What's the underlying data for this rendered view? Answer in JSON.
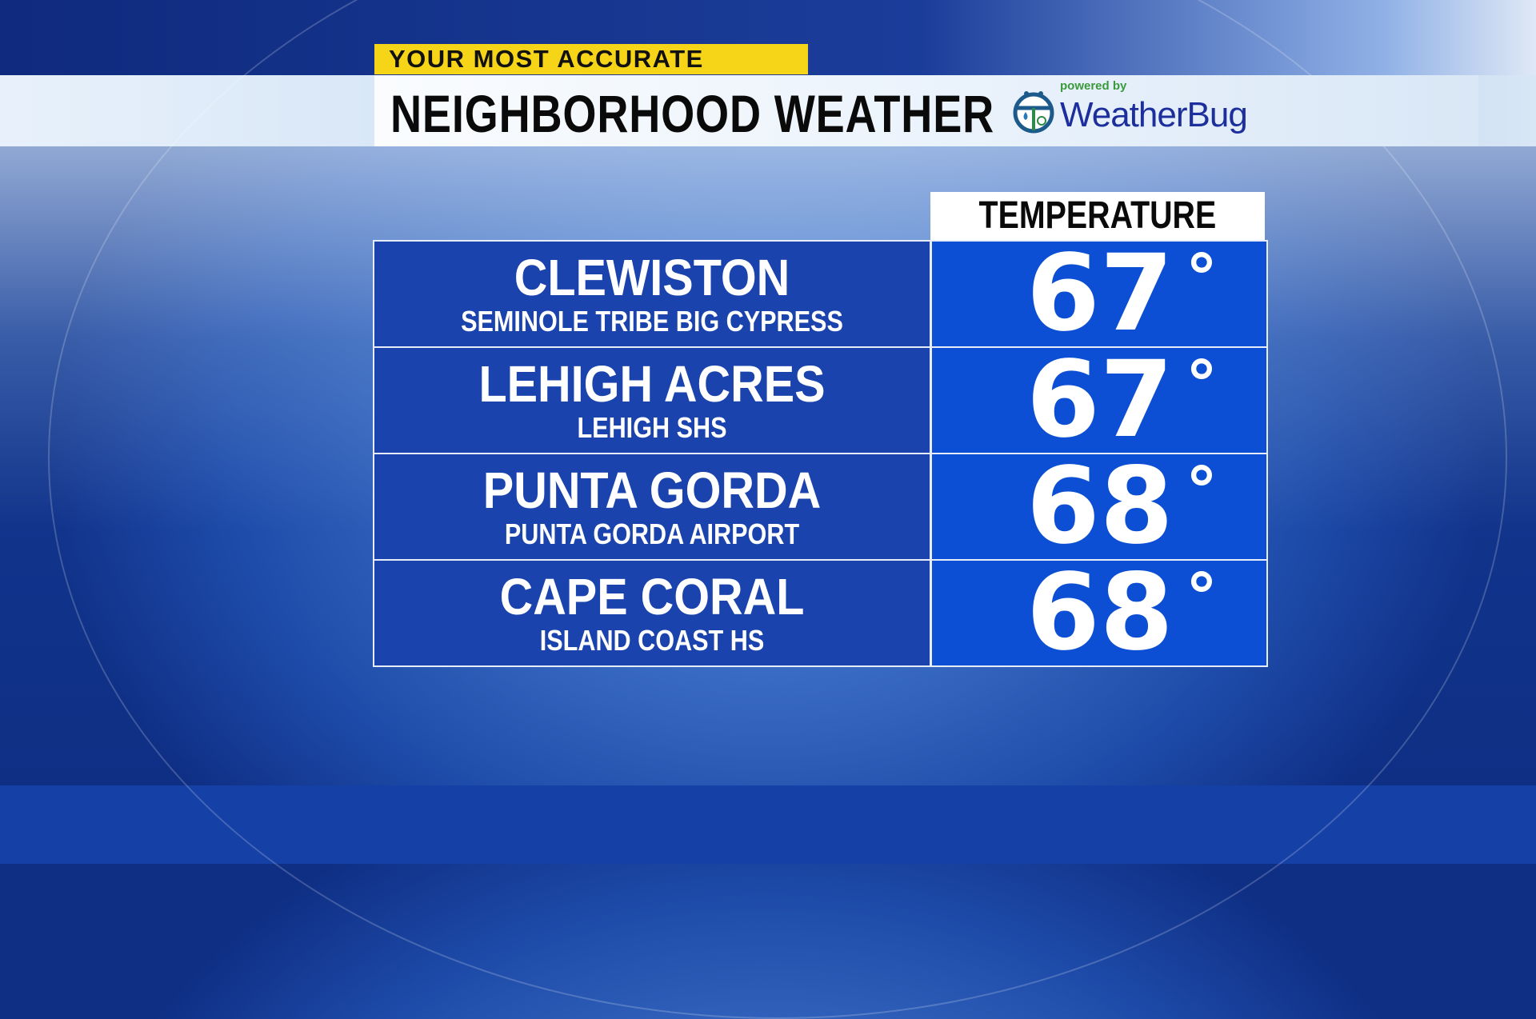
{
  "header": {
    "tagline": "YOUR MOST ACCURATE",
    "title": "NEIGHBORHOOD WEATHER",
    "logo": {
      "powered_by": "powered by",
      "brand": "WeatherBug",
      "icon": "ladybug-weather-icon"
    }
  },
  "table": {
    "column_header": "TEMPERATURE",
    "degree_symbol": "°",
    "rows": [
      {
        "city": "CLEWISTON",
        "station": "SEMINOLE TRIBE BIG CYPRESS",
        "temperature": "67"
      },
      {
        "city": "LEHIGH ACRES",
        "station": "LEHIGH SHS",
        "temperature": "67"
      },
      {
        "city": "PUNTA GORDA",
        "station": "PUNTA GORDA AIRPORT",
        "temperature": "68"
      },
      {
        "city": "CAPE CORAL",
        "station": "ISLAND COAST HS",
        "temperature": "68"
      }
    ]
  },
  "colors": {
    "tagline_bg": "#f6d418",
    "location_cell": "#1a43ad",
    "temp_cell": "#0c4fd4",
    "brand": "#1c2f9c"
  }
}
